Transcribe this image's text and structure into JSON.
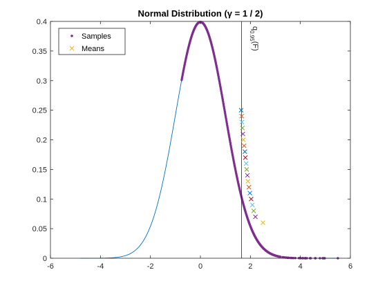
{
  "chart_data": {
    "type": "scatter",
    "title": "Normal Distribution (γ = 1 / 2)",
    "xlabel": "",
    "ylabel": "",
    "xlim": [
      -6,
      6
    ],
    "ylim": [
      0,
      0.4
    ],
    "x_ticks": [
      -6,
      -4,
      -2,
      0,
      2,
      4,
      6
    ],
    "y_ticks": [
      0,
      0.05,
      0.1,
      0.15,
      0.2,
      0.25,
      0.3,
      0.35,
      0.4
    ],
    "grid": false,
    "legend_position": "top-left",
    "legend": [
      {
        "label": "Samples",
        "marker": "dot",
        "color": "#7e2f8e"
      },
      {
        "label": "Means",
        "marker": "x",
        "color": "#edb120"
      }
    ],
    "density_curve": {
      "color": "#0072bd",
      "x_range": [
        -4.8,
        5.5
      ],
      "formula": "standard normal pdf"
    },
    "samples": {
      "color": "#7e2f8e",
      "x_min": -0.75,
      "x_max": 5.5
    },
    "quantile_line": {
      "x": 1.645,
      "label_main": "q",
      "label_sub": "0.95",
      "label_arg": "(F)"
    },
    "means": [
      {
        "x": 1.63,
        "y": 0.25,
        "color": "#0072bd"
      },
      {
        "x": 1.65,
        "y": 0.24,
        "color": "#d95319"
      },
      {
        "x": 1.66,
        "y": 0.23,
        "color": "#4dbeee"
      },
      {
        "x": 1.68,
        "y": 0.22,
        "color": "#77ac30"
      },
      {
        "x": 1.7,
        "y": 0.21,
        "color": "#7e2f8e"
      },
      {
        "x": 1.72,
        "y": 0.2,
        "color": "#edb120"
      },
      {
        "x": 1.75,
        "y": 0.19,
        "color": "#d95319"
      },
      {
        "x": 1.78,
        "y": 0.18,
        "color": "#0072bd"
      },
      {
        "x": 1.8,
        "y": 0.17,
        "color": "#a2142f"
      },
      {
        "x": 1.83,
        "y": 0.16,
        "color": "#4dbeee"
      },
      {
        "x": 1.85,
        "y": 0.15,
        "color": "#77ac30"
      },
      {
        "x": 1.88,
        "y": 0.14,
        "color": "#7e2f8e"
      },
      {
        "x": 1.9,
        "y": 0.13,
        "color": "#edb120"
      },
      {
        "x": 1.94,
        "y": 0.12,
        "color": "#d95319"
      },
      {
        "x": 1.98,
        "y": 0.11,
        "color": "#0072bd"
      },
      {
        "x": 2.03,
        "y": 0.1,
        "color": "#a2142f"
      },
      {
        "x": 2.08,
        "y": 0.09,
        "color": "#4dbeee"
      },
      {
        "x": 2.13,
        "y": 0.08,
        "color": "#77ac30"
      },
      {
        "x": 2.2,
        "y": 0.07,
        "color": "#7e2f8e"
      },
      {
        "x": 2.5,
        "y": 0.06,
        "color": "#edb120"
      }
    ]
  }
}
